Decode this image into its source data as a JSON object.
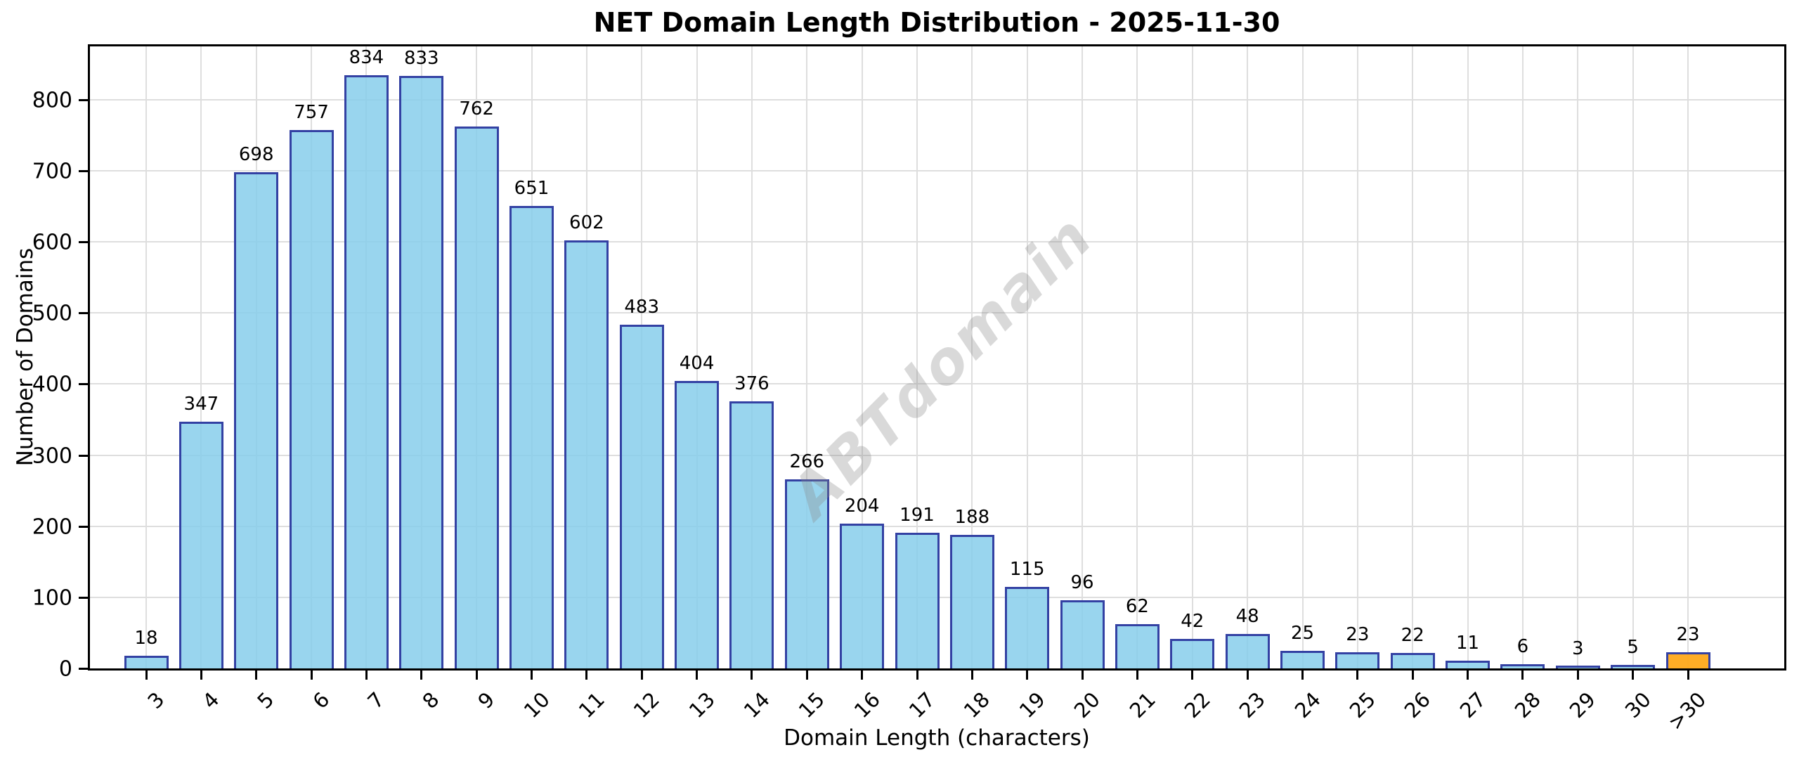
{
  "chart_data": {
    "type": "bar",
    "title": "NET Domain Length Distribution - 2025-11-30",
    "xlabel": "Domain Length (characters)",
    "ylabel": "Number of Domains",
    "watermark": "ABTdomain",
    "categories": [
      "3",
      "4",
      "5",
      "6",
      "7",
      "8",
      "9",
      "10",
      "11",
      "12",
      "13",
      "14",
      "15",
      "16",
      "17",
      "18",
      "19",
      "20",
      "21",
      "22",
      "23",
      "24",
      "25",
      "26",
      "27",
      "28",
      "29",
      "30",
      ">30"
    ],
    "values": [
      18,
      347,
      698,
      757,
      834,
      833,
      762,
      651,
      602,
      483,
      404,
      376,
      266,
      204,
      191,
      188,
      115,
      96,
      62,
      42,
      48,
      25,
      23,
      22,
      11,
      6,
      3,
      5,
      23
    ],
    "highlight_index": 28,
    "yticks": [
      0,
      100,
      200,
      300,
      400,
      500,
      600,
      700,
      800
    ],
    "ylim": [
      0,
      875
    ],
    "grid": true,
    "legend_position": "none",
    "colors": {
      "bar_fill": "rgba(135,206,235,0.85)",
      "bar_edge": "#3341a3",
      "highlight_fill": "rgba(255,166,20,0.92)",
      "grid": "#dedede",
      "text": "#000000",
      "watermark": "#8a8a8a"
    }
  }
}
